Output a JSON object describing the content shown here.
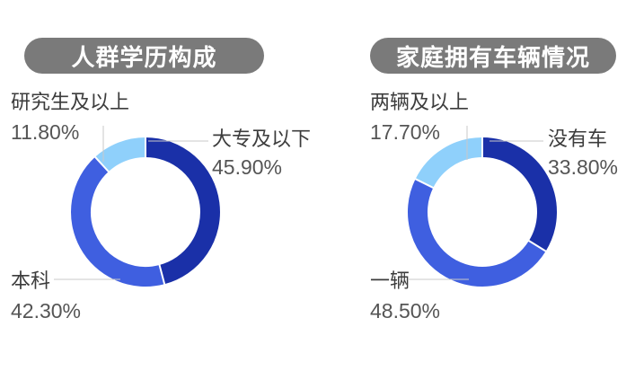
{
  "chart_data": [
    {
      "type": "donut",
      "title": "人群学历构成",
      "slices": [
        {
          "label": "大专及以下",
          "value": 45.9,
          "value_label": "45.90%",
          "color": "#1a30a8"
        },
        {
          "label": "本科",
          "value": 42.3,
          "value_label": "42.30%",
          "color": "#3f5fe0"
        },
        {
          "label": "研究生及以上",
          "value": 11.8,
          "value_label": "11.80%",
          "color": "#8fd0fb"
        }
      ]
    },
    {
      "type": "donut",
      "title": "家庭拥有车辆情况",
      "slices": [
        {
          "label": "没有车",
          "value": 33.8,
          "value_label": "33.80%",
          "color": "#1a30a8"
        },
        {
          "label": "一辆",
          "value": 48.5,
          "value_label": "48.50%",
          "color": "#3f5fe0"
        },
        {
          "label": "两辆及以上",
          "value": 17.7,
          "value_label": "17.70%",
          "color": "#8fd0fb"
        }
      ]
    }
  ]
}
